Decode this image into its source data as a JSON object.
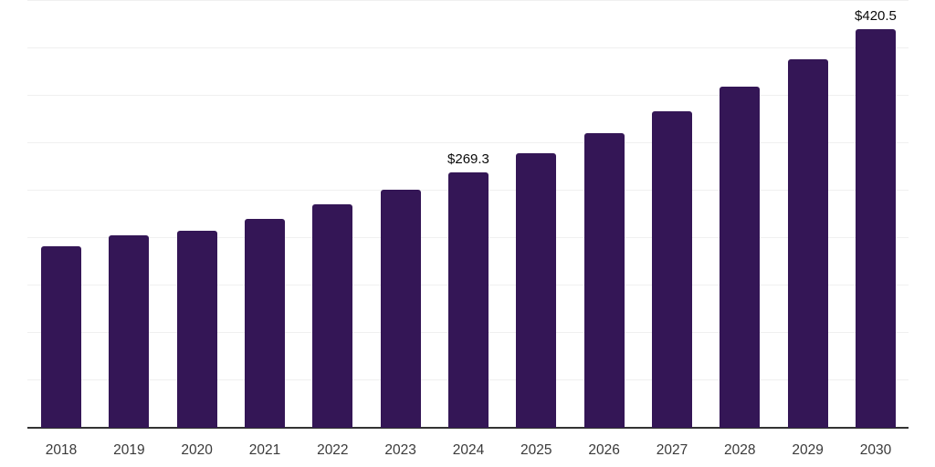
{
  "chart_data": {
    "type": "bar",
    "title": "",
    "xlabel": "",
    "ylabel": "",
    "categories": [
      "2018",
      "2019",
      "2020",
      "2021",
      "2022",
      "2023",
      "2024",
      "2025",
      "2026",
      "2027",
      "2028",
      "2029",
      "2030"
    ],
    "values": [
      191.2,
      202.5,
      207.5,
      220.0,
      235.2,
      250.5,
      269.3,
      289.0,
      310.5,
      333.8,
      359.3,
      388.0,
      420.5
    ],
    "data_labels": [
      {
        "category": "2024",
        "text": "$269.3"
      },
      {
        "category": "2030",
        "text": "$420.5"
      }
    ],
    "ylim": [
      0,
      450
    ],
    "gridline_step": 50,
    "grid": "horizontal-only",
    "y_tick_labels_visible": false,
    "legend": "none",
    "colors": {
      "bar": "#341656",
      "gridline": "#f0f0f0",
      "axis_line": "#333333",
      "x_label": "#3a3a3a",
      "data_label": "#0a0a0a",
      "background": "#ffffff"
    }
  }
}
